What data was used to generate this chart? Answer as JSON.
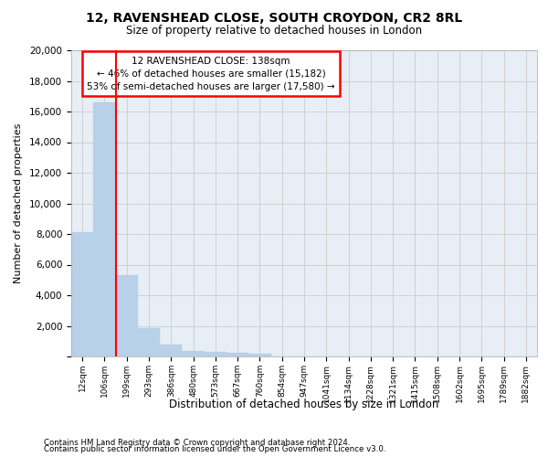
{
  "title1": "12, RAVENSHEAD CLOSE, SOUTH CROYDON, CR2 8RL",
  "title2": "Size of property relative to detached houses in London",
  "xlabel": "Distribution of detached houses by size in London",
  "ylabel": "Number of detached properties",
  "categories": [
    "12sqm",
    "106sqm",
    "199sqm",
    "293sqm",
    "386sqm",
    "480sqm",
    "573sqm",
    "667sqm",
    "760sqm",
    "854sqm",
    "947sqm",
    "1041sqm",
    "1134sqm",
    "1228sqm",
    "1321sqm",
    "1415sqm",
    "1508sqm",
    "1602sqm",
    "1695sqm",
    "1789sqm",
    "1882sqm"
  ],
  "values": [
    8100,
    16600,
    5300,
    1850,
    780,
    370,
    280,
    210,
    170,
    0,
    0,
    0,
    0,
    0,
    0,
    0,
    0,
    0,
    0,
    0,
    0
  ],
  "bar_color": "#b8d0e8",
  "bar_edge_color": "#b8d0e8",
  "annotation_box_text": "12 RAVENSHEAD CLOSE: 138sqm\n← 46% of detached houses are smaller (15,182)\n53% of semi-detached houses are larger (17,580) →",
  "annotation_box_color": "white",
  "annotation_box_edge_color": "red",
  "vline_color": "red",
  "vline_x": 1.5,
  "ylim": [
    0,
    20000
  ],
  "yticks": [
    0,
    2000,
    4000,
    6000,
    8000,
    10000,
    12000,
    14000,
    16000,
    18000,
    20000
  ],
  "grid_color": "#cccccc",
  "background_color": "#e8eef5",
  "footer1": "Contains HM Land Registry data © Crown copyright and database right 2024.",
  "footer2": "Contains public sector information licensed under the Open Government Licence v3.0."
}
